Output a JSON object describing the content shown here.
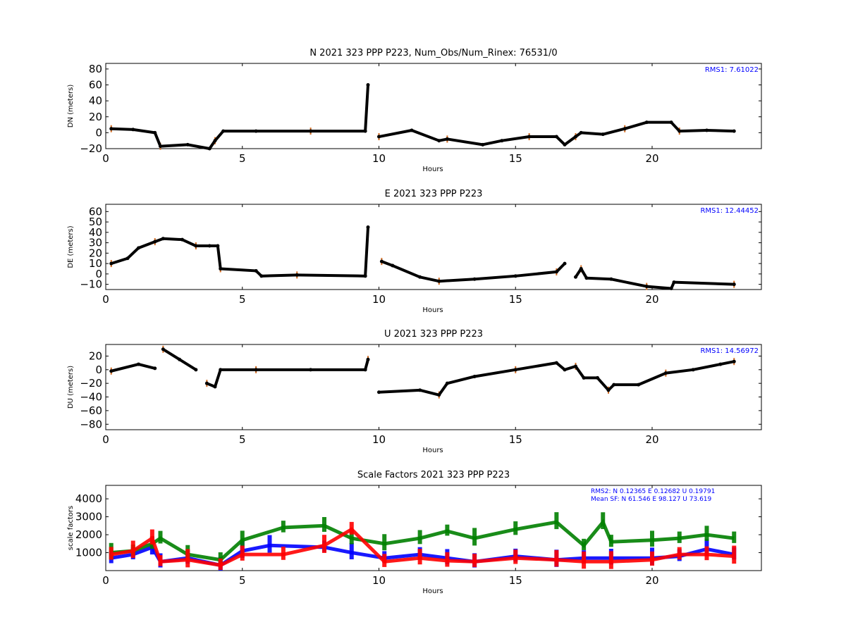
{
  "chart_data": [
    {
      "type": "scatter",
      "title": "N 2021 323 PPP  P223, Num_Obs/Num_Rinex: 76531/0",
      "xlabel": "Hours",
      "ylabel": "DN (meters)",
      "xlim": [
        0,
        24
      ],
      "ylim": [
        -20,
        87
      ],
      "xticks": [
        "0",
        "5",
        "10",
        "15",
        "20"
      ],
      "yticks": [
        "−20",
        "0",
        "20",
        "40",
        "60",
        "80"
      ],
      "annotation": "RMS1:  7.61022",
      "colors": {
        "data": "#000000",
        "error": "#d2691e",
        "annotation": "#0000ff"
      },
      "series": [
        {
          "values": [
            [
              0.2,
              5
            ],
            [
              1.0,
              4
            ],
            [
              1.8,
              0
            ],
            [
              2.0,
              -17
            ],
            [
              3.0,
              -15
            ],
            [
              3.8,
              -20
            ],
            [
              4.0,
              -10
            ],
            [
              4.3,
              2
            ],
            [
              5.5,
              2
            ],
            [
              7.5,
              2
            ],
            [
              9.5,
              2
            ],
            [
              9.6,
              60
            ],
            [
              10,
              -5
            ],
            [
              11.2,
              3
            ],
            [
              12.2,
              -10
            ],
            [
              12.5,
              -8
            ],
            [
              13.8,
              -15
            ],
            [
              14.5,
              -10
            ],
            [
              15.5,
              -5
            ],
            [
              16.5,
              -5
            ],
            [
              16.8,
              -15
            ],
            [
              17.2,
              -5
            ],
            [
              17.4,
              0
            ],
            [
              18.2,
              -2
            ],
            [
              19.0,
              5
            ],
            [
              19.8,
              13
            ],
            [
              20.7,
              13
            ],
            [
              21.0,
              2
            ],
            [
              22.0,
              3
            ],
            [
              23.0,
              2
            ]
          ]
        }
      ]
    },
    {
      "type": "scatter",
      "title": "E 2021 323 PPP  P223",
      "xlabel": "Hours",
      "ylabel": "DE (meters)",
      "xlim": [
        0,
        24
      ],
      "ylim": [
        -15,
        67
      ],
      "xticks": [
        "0",
        "5",
        "10",
        "15",
        "20"
      ],
      "yticks": [
        "−10",
        "0",
        "10",
        "20",
        "30",
        "40",
        "50",
        "60"
      ],
      "annotation": "RMS1: 12.44452",
      "colors": {
        "data": "#000000",
        "error": "#d2691e",
        "annotation": "#0000ff"
      },
      "series": [
        {
          "values": [
            [
              0.2,
              10
            ],
            [
              0.8,
              15
            ],
            [
              1.2,
              25
            ],
            [
              1.8,
              31
            ],
            [
              2.1,
              34
            ],
            [
              2.8,
              33
            ],
            [
              3.3,
              27
            ],
            [
              3.8,
              27
            ],
            [
              4.1,
              27
            ],
            [
              4.2,
              5
            ],
            [
              5.5,
              3
            ],
            [
              5.7,
              -2
            ],
            [
              7.0,
              -1
            ],
            [
              9.5,
              -2
            ],
            [
              9.6,
              45
            ],
            [
              10.1,
              12
            ],
            [
              10.5,
              8
            ],
            [
              11.5,
              -3
            ],
            [
              12.2,
              -7
            ],
            [
              13.5,
              -5
            ],
            [
              15.0,
              -2
            ],
            [
              16.5,
              2
            ],
            [
              16.8,
              10
            ],
            [
              17.2,
              -3
            ],
            [
              17.4,
              5
            ],
            [
              17.6,
              -4
            ],
            [
              18.5,
              -5
            ],
            [
              19.8,
              -12
            ],
            [
              20.7,
              -14
            ],
            [
              20.8,
              -8
            ],
            [
              23.0,
              -10
            ]
          ]
        }
      ]
    },
    {
      "type": "scatter",
      "title": "U 2021 323 PPP  P223",
      "xlabel": "Hours",
      "ylabel": "DU (meters)",
      "xlim": [
        0,
        24
      ],
      "ylim": [
        -88,
        37
      ],
      "xticks": [
        "0",
        "5",
        "10",
        "15",
        "20"
      ],
      "yticks": [
        "−80",
        "−60",
        "−40",
        "−20",
        "0",
        "20"
      ],
      "annotation": "RMS1: 14.56972",
      "colors": {
        "data": "#000000",
        "error": "#d2691e",
        "annotation": "#0000ff"
      },
      "series": [
        {
          "values": [
            [
              0.2,
              -2
            ],
            [
              1.2,
              8
            ],
            [
              1.8,
              2
            ],
            [
              2.1,
              30
            ],
            [
              2.7,
              15
            ],
            [
              3.3,
              0
            ],
            [
              3.7,
              -20
            ],
            [
              4.0,
              -25
            ],
            [
              4.2,
              0
            ],
            [
              5.5,
              0
            ],
            [
              7.5,
              0
            ],
            [
              9.5,
              0
            ],
            [
              9.6,
              15
            ],
            [
              10.0,
              -33
            ],
            [
              11.5,
              -30
            ],
            [
              12.2,
              -37
            ],
            [
              12.5,
              -20
            ],
            [
              13.5,
              -10
            ],
            [
              15.0,
              0
            ],
            [
              16.5,
              10
            ],
            [
              16.8,
              0
            ],
            [
              17.2,
              5
            ],
            [
              17.5,
              -12
            ],
            [
              18.0,
              -12
            ],
            [
              18.4,
              -30
            ],
            [
              18.6,
              -22
            ],
            [
              19.5,
              -22
            ],
            [
              20.5,
              -5
            ],
            [
              21.5,
              0
            ],
            [
              22.5,
              8
            ],
            [
              23.0,
              12
            ]
          ]
        }
      ]
    },
    {
      "type": "scatter",
      "title": "Scale Factors 2021 323 PPP  P223",
      "xlabel": "Hours",
      "ylabel": "scale factors",
      "xlim": [
        0,
        24
      ],
      "ylim": [
        0,
        4750
      ],
      "xticks": [
        "0",
        "5",
        "10",
        "15",
        "20"
      ],
      "yticks": [
        "1000",
        "2000",
        "3000",
        "4000"
      ],
      "annotation_lines": [
        "RMS2: N  0.12365    E  0.12682  U  0.19791",
        "Mean SF: N  61.546  E  98.127    U  73.619"
      ],
      "annotation_colors": [
        "#0000ff",
        "#008000",
        "#ff0000"
      ],
      "series": [
        {
          "name": "N",
          "color": "#0000ff",
          "values": [
            [
              0.2,
              700
            ],
            [
              1.0,
              900
            ],
            [
              1.7,
              1300
            ],
            [
              2.0,
              500
            ],
            [
              3.0,
              700
            ],
            [
              4.2,
              300
            ],
            [
              5.0,
              1100
            ],
            [
              6.0,
              1400
            ],
            [
              8.0,
              1300
            ],
            [
              9.0,
              1000
            ],
            [
              10.2,
              700
            ],
            [
              11.5,
              900
            ],
            [
              12.5,
              700
            ],
            [
              13.5,
              500
            ],
            [
              15.0,
              800
            ],
            [
              16.5,
              600
            ],
            [
              17.5,
              700
            ],
            [
              18.5,
              700
            ],
            [
              20.0,
              700
            ],
            [
              21.0,
              800
            ],
            [
              22.0,
              1200
            ],
            [
              23.0,
              900
            ]
          ]
        },
        {
          "name": "E",
          "color": "#008000",
          "values": [
            [
              0.2,
              1000
            ],
            [
              1.0,
              1100
            ],
            [
              1.7,
              1500
            ],
            [
              2.0,
              1800
            ],
            [
              3.0,
              900
            ],
            [
              4.2,
              600
            ],
            [
              5.0,
              1700
            ],
            [
              6.5,
              2400
            ],
            [
              8.0,
              2500
            ],
            [
              9.0,
              1800
            ],
            [
              10.2,
              1500
            ],
            [
              11.5,
              1800
            ],
            [
              12.5,
              2200
            ],
            [
              13.5,
              1800
            ],
            [
              15.0,
              2300
            ],
            [
              16.5,
              2700
            ],
            [
              17.5,
              1400
            ],
            [
              18.2,
              2700
            ],
            [
              18.5,
              1600
            ],
            [
              20.0,
              1700
            ],
            [
              21.0,
              1800
            ],
            [
              22.0,
              2000
            ],
            [
              23.0,
              1800
            ]
          ]
        },
        {
          "name": "U",
          "color": "#ff0000",
          "values": [
            [
              0.2,
              900
            ],
            [
              1.0,
              1100
            ],
            [
              1.7,
              1800
            ],
            [
              2.0,
              500
            ],
            [
              3.0,
              600
            ],
            [
              4.2,
              300
            ],
            [
              5.0,
              900
            ],
            [
              6.5,
              900
            ],
            [
              8.0,
              1400
            ],
            [
              9.0,
              2300
            ],
            [
              10.2,
              500
            ],
            [
              11.5,
              700
            ],
            [
              12.5,
              550
            ],
            [
              13.5,
              500
            ],
            [
              15.0,
              700
            ],
            [
              16.5,
              600
            ],
            [
              17.5,
              500
            ],
            [
              18.5,
              500
            ],
            [
              20.0,
              600
            ],
            [
              21.0,
              900
            ],
            [
              22.0,
              900
            ],
            [
              23.0,
              800
            ]
          ]
        }
      ]
    }
  ]
}
